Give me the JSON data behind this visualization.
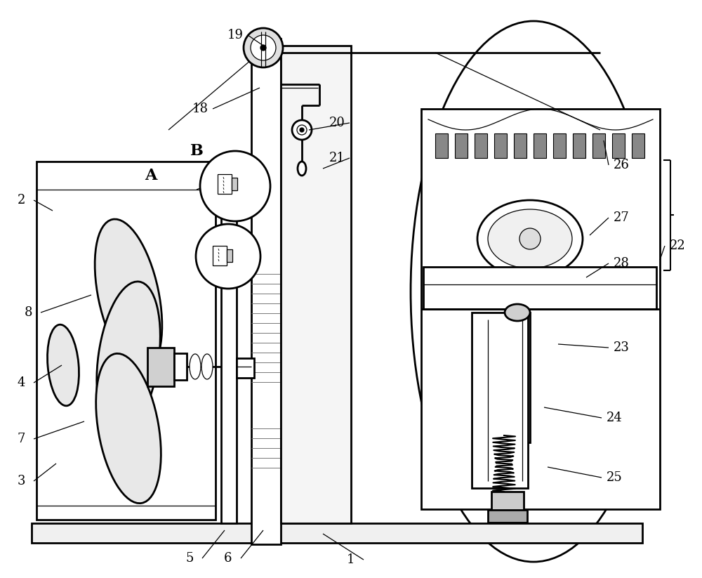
{
  "bg_color": "#ffffff",
  "line_color": "#000000",
  "fig_width": 10.0,
  "fig_height": 8.23,
  "lw_main": 1.5,
  "lw_thin": 0.9,
  "lw_thick": 2.0
}
